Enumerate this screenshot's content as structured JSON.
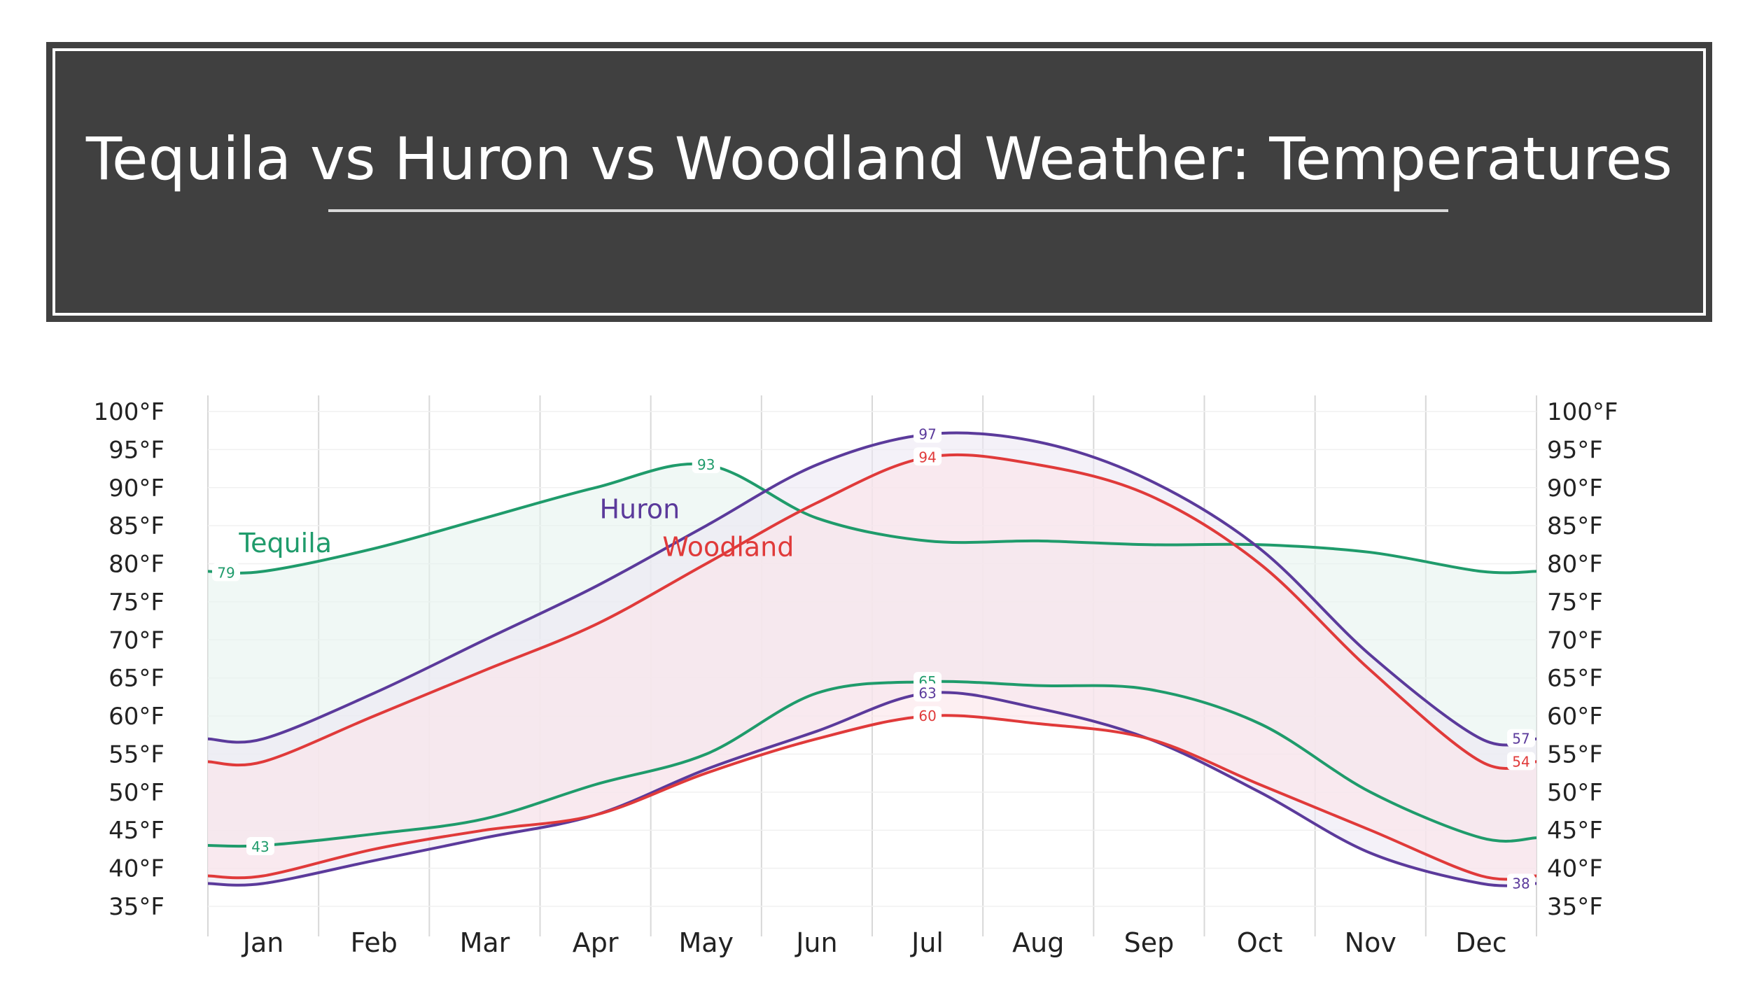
{
  "slide": {
    "title": "Tequila vs Huron vs Woodland Weather: Temperatures"
  },
  "chart_data": {
    "type": "line",
    "x": [
      "Jan",
      "Feb",
      "Mar",
      "Apr",
      "May",
      "Jun",
      "Jul",
      "Aug",
      "Sep",
      "Oct",
      "Nov",
      "Dec"
    ],
    "ylim": [
      35,
      100
    ],
    "yticks": [
      "100°F",
      "95°F",
      "90°F",
      "85°F",
      "80°F",
      "75°F",
      "70°F",
      "65°F",
      "60°F",
      "55°F",
      "50°F",
      "45°F",
      "40°F",
      "35°F"
    ],
    "grid": true,
    "series": [
      {
        "name": "Tequila",
        "color": "#1f9b6b",
        "band_fill": "#e6f4ee",
        "high": [
          79,
          82,
          86,
          90,
          93,
          86,
          83,
          83,
          82.5,
          82.5,
          81.5,
          79
        ],
        "low": [
          43,
          44.5,
          46.5,
          51,
          55,
          63,
          64.5,
          64,
          63.5,
          59,
          50,
          44
        ],
        "labels": {
          "high_start": "79",
          "high_peak": "93",
          "low_start": "43",
          "low_peak": "65"
        }
      },
      {
        "name": "Huron",
        "color": "#5b3a9b",
        "band_fill": "#ece8f4",
        "high": [
          57,
          63,
          70,
          77,
          85,
          93,
          97,
          96,
          91,
          82,
          68,
          57
        ],
        "low": [
          38,
          41,
          44,
          47,
          53,
          58,
          63,
          61,
          57,
          50,
          42,
          38
        ],
        "labels": {
          "high_peak": "97",
          "high_end": "57",
          "low_peak": "63",
          "low_end": "38"
        }
      },
      {
        "name": "Woodland",
        "color": "#e03a3a",
        "band_fill": "#fbe5ea",
        "high": [
          54,
          60,
          66,
          72,
          80,
          88,
          94,
          93,
          89,
          80,
          66,
          54
        ],
        "low": [
          39,
          42.5,
          45,
          47,
          52.5,
          57,
          60,
          59,
          57,
          51,
          45,
          39
        ],
        "labels": {
          "high_peak": "94",
          "high_end": "54",
          "low_peak": "60"
        }
      }
    ]
  }
}
